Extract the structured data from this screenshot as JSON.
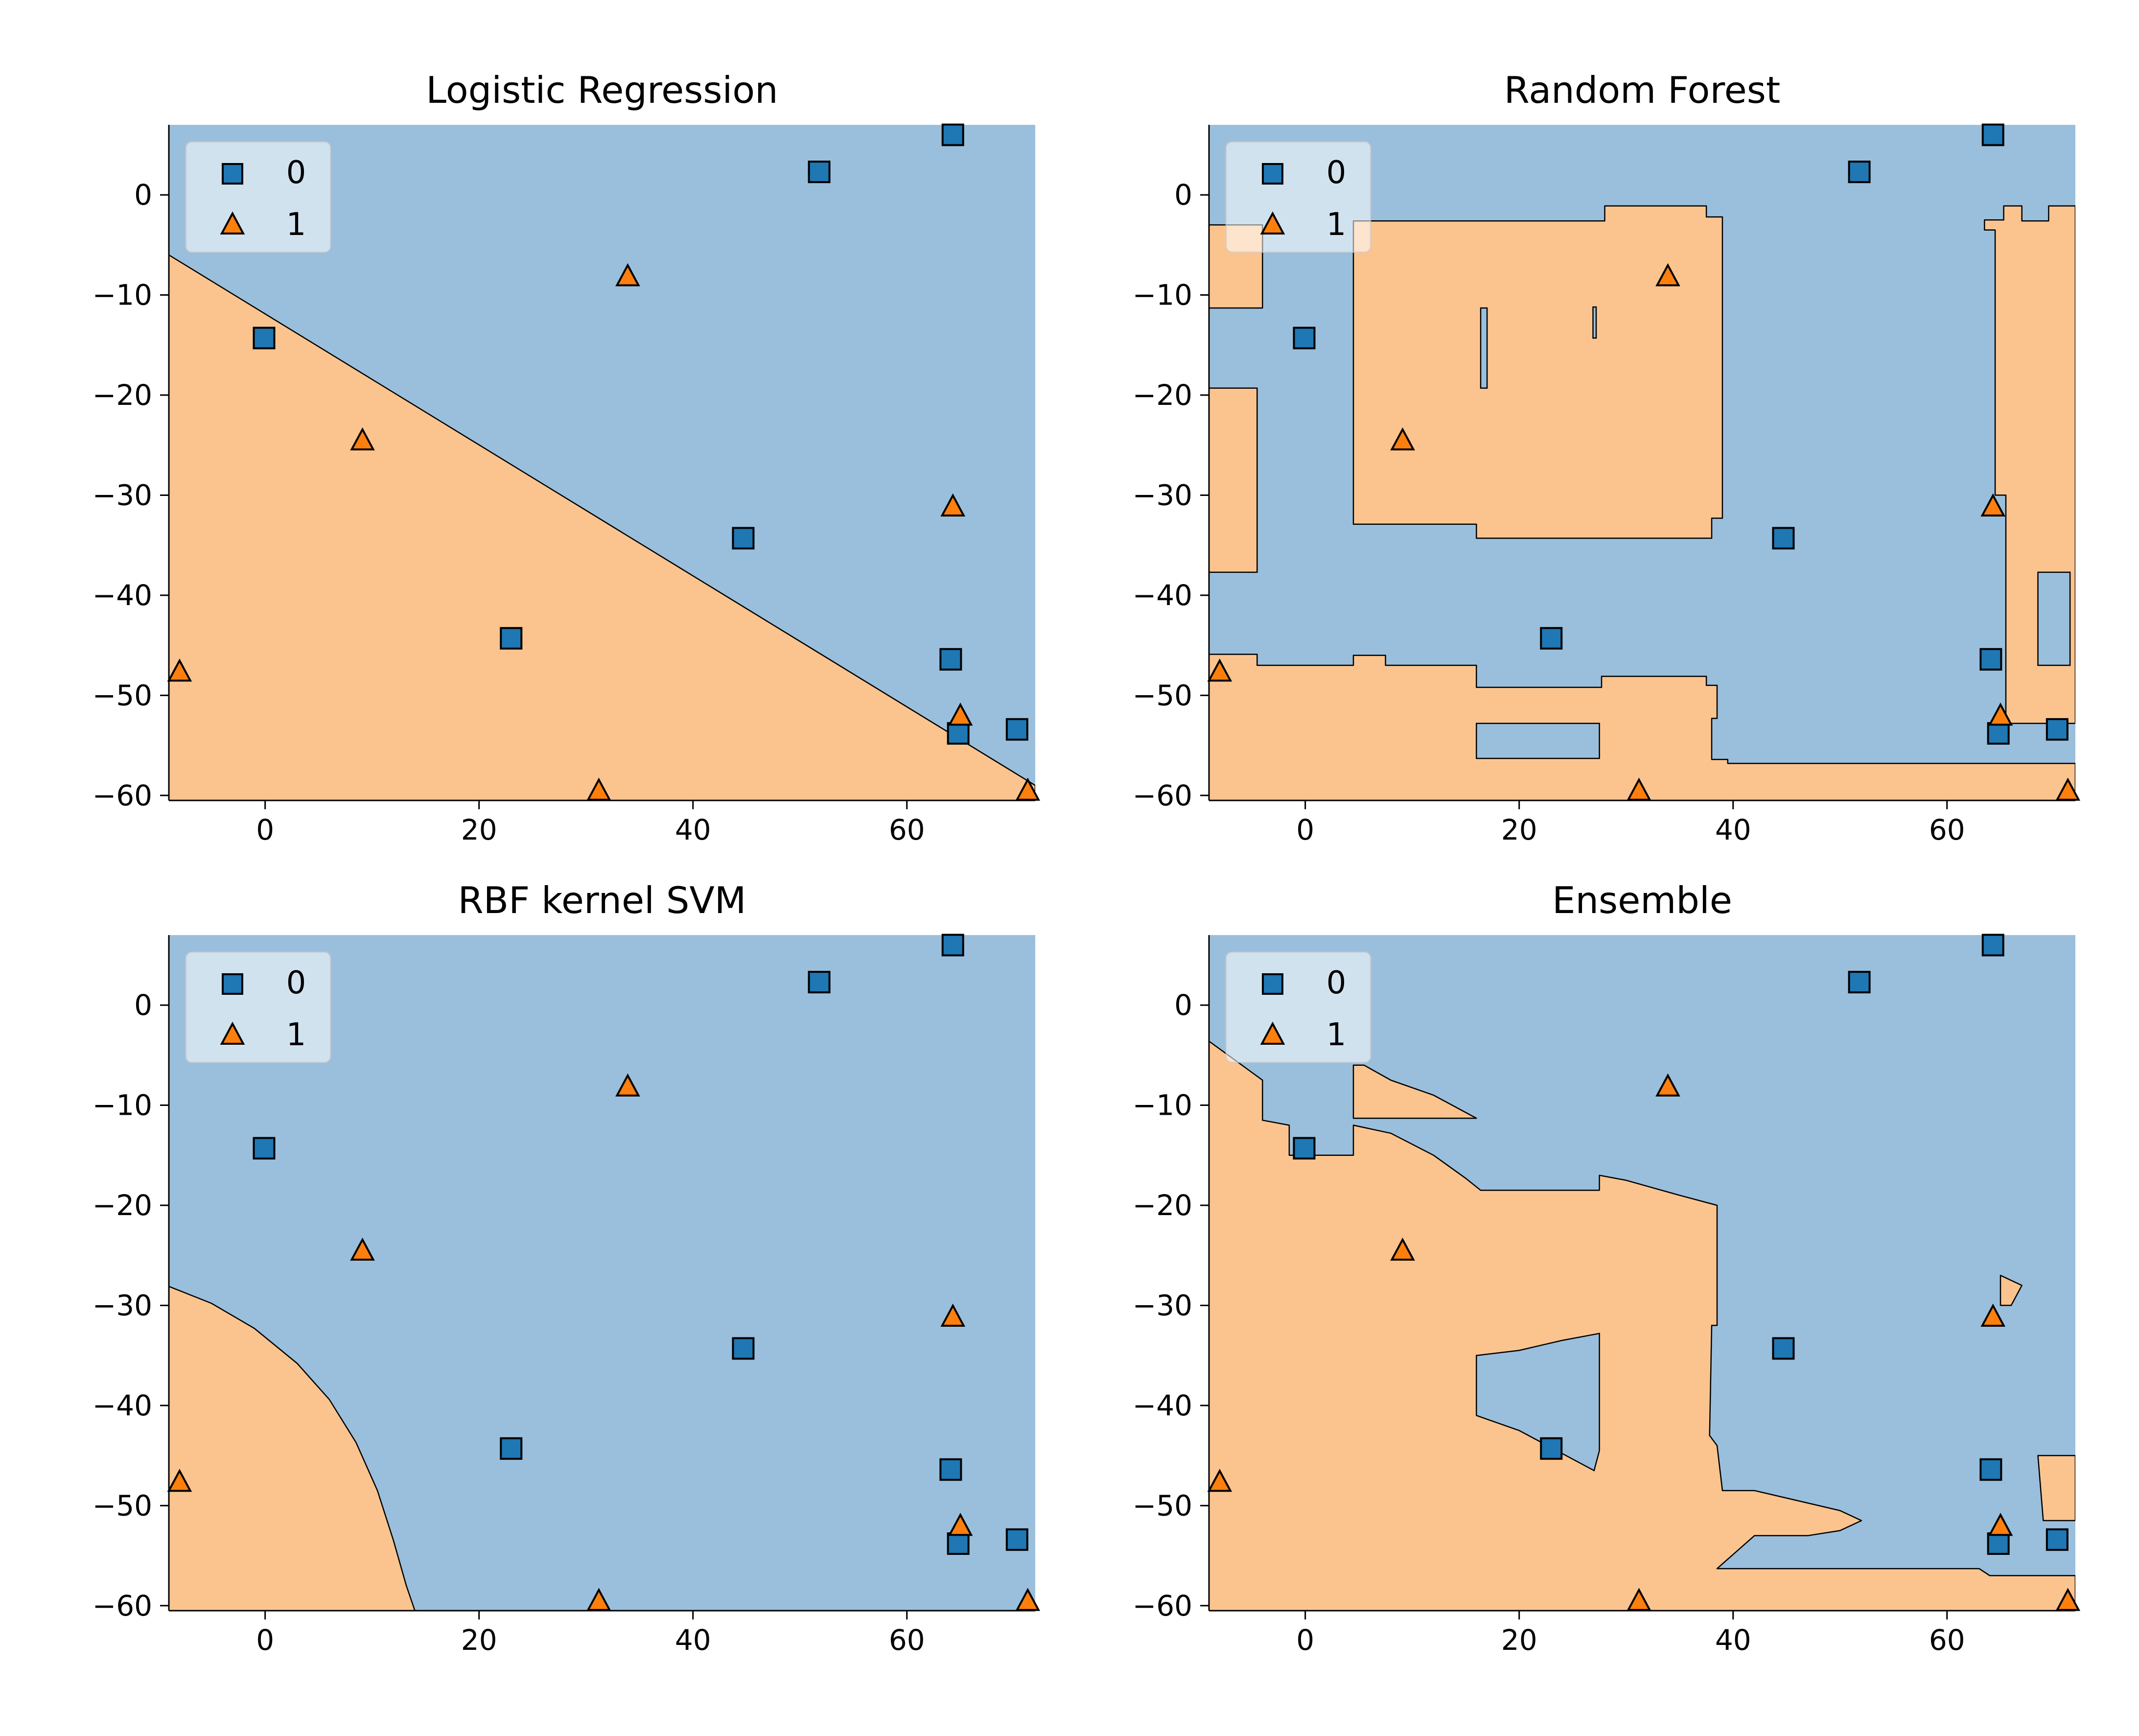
{
  "colors": {
    "class0_region": "#9ABFDC",
    "class1_region": "#FBC48F",
    "class0_marker": "#1F77B4",
    "class1_marker": "#FF7F0E",
    "boundary": "#000000"
  },
  "chart_data": [
    {
      "type": "scatter",
      "title": "Logistic Regression",
      "xlim": [
        -9,
        72
      ],
      "ylim": [
        -60.5,
        7
      ],
      "xticks": [
        "0",
        "20",
        "40",
        "60"
      ],
      "yticks": [
        "0",
        "−10",
        "−20",
        "−30",
        "−40",
        "−50",
        "−60"
      ],
      "legend": {
        "placement": "top-left",
        "entries": [
          "0",
          "1"
        ]
      },
      "decision_regions": {
        "default_class": "0",
        "class1_polygons": [
          [
            [
              -9,
              -6
            ],
            [
              72,
              -59
            ],
            [
              72,
              -60.5
            ],
            [
              -9,
              -60.5
            ]
          ]
        ]
      },
      "series": [
        {
          "name": "0",
          "marker": "square",
          "points": [
            [
              64.3,
              6
            ],
            [
              51.8,
              2.3
            ],
            [
              -0.1,
              -14.3
            ],
            [
              44.7,
              -34.3
            ],
            [
              23,
              -44.3
            ],
            [
              64.1,
              -46.4
            ],
            [
              70.3,
              -53.4
            ],
            [
              64.8,
              -53.8
            ]
          ]
        },
        {
          "name": "1",
          "marker": "triangle",
          "points": [
            [
              33.9,
              -8.2
            ],
            [
              9.1,
              -24.6
            ],
            [
              64.3,
              -31.2
            ],
            [
              -8,
              -47.7
            ],
            [
              65,
              -52.1
            ],
            [
              31.2,
              -59.6
            ],
            [
              71.3,
              -59.6
            ]
          ]
        }
      ]
    },
    {
      "type": "scatter",
      "title": "Random Forest",
      "xlim": [
        -9,
        72
      ],
      "ylim": [
        -60.5,
        7
      ],
      "xticks": [
        "0",
        "20",
        "40",
        "60"
      ],
      "yticks": [
        "0",
        "−10",
        "−20",
        "−30",
        "−40",
        "−50",
        "−60"
      ],
      "legend": {
        "placement": "top-left",
        "entries": [
          "0",
          "1"
        ]
      },
      "decision_regions": {
        "default_class": "0",
        "class1_polygons": [
          [
            [
              -9,
              -3
            ],
            [
              -4,
              -3
            ],
            [
              -4,
              -11.3
            ],
            [
              -9,
              -11.3
            ]
          ],
          [
            [
              -9,
              -19.3
            ],
            [
              -4.5,
              -19.3
            ],
            [
              -4.5,
              -37.7
            ],
            [
              -9,
              -37.7
            ]
          ],
          [
            [
              4.5,
              -2.6
            ],
            [
              28,
              -2.6
            ],
            [
              28,
              -1.1
            ],
            [
              37.5,
              -1.1
            ],
            [
              37.5,
              -2.2
            ],
            [
              39,
              -2.2
            ],
            [
              39,
              -32.3
            ],
            [
              38,
              -32.3
            ],
            [
              38,
              -34.3
            ],
            [
              16,
              -34.3
            ],
            [
              16,
              -32.9
            ],
            [
              4.5,
              -32.9
            ]
          ],
          [
            [
              63.5,
              -2.5
            ],
            [
              65.3,
              -2.5
            ],
            [
              65.3,
              -1.1
            ],
            [
              67,
              -1.1
            ],
            [
              67,
              -2.6
            ],
            [
              69.5,
              -2.6
            ],
            [
              69.5,
              -1.1
            ],
            [
              72,
              -1.1
            ],
            [
              72,
              -52.8
            ],
            [
              65.5,
              -52.8
            ],
            [
              65.5,
              -30
            ],
            [
              64.5,
              -30
            ],
            [
              64.5,
              -3.5
            ],
            [
              63.5,
              -3.5
            ]
          ],
          [
            [
              -9,
              -45.9
            ],
            [
              -4.5,
              -45.9
            ],
            [
              -4.5,
              -47
            ],
            [
              4.5,
              -47
            ],
            [
              4.5,
              -46
            ],
            [
              7.5,
              -46
            ],
            [
              7.5,
              -47
            ],
            [
              16,
              -47
            ],
            [
              16,
              -49.2
            ],
            [
              27.7,
              -49.2
            ],
            [
              27.7,
              -48.1
            ],
            [
              37.5,
              -48.1
            ],
            [
              37.5,
              -49
            ],
            [
              38.5,
              -49
            ],
            [
              38.5,
              -52.3
            ],
            [
              38,
              -52.3
            ],
            [
              38,
              -56.4
            ],
            [
              39.5,
              -56.4
            ],
            [
              39.5,
              -56.8
            ],
            [
              72,
              -56.8
            ],
            [
              72,
              -60.5
            ],
            [
              -9,
              -60.5
            ]
          ]
        ],
        "class0_polygons": [
          [
            [
              16,
              -52.8
            ],
            [
              27.5,
              -52.8
            ],
            [
              27.5,
              -56.3
            ],
            [
              16,
              -56.3
            ]
          ],
          [
            [
              16.4,
              -11.3
            ],
            [
              17,
              -11.3
            ],
            [
              17,
              -19.3
            ],
            [
              16.4,
              -19.3
            ]
          ],
          [
            [
              26.9,
              -11.2
            ],
            [
              27.2,
              -11.2
            ],
            [
              27.2,
              -14.3
            ],
            [
              26.9,
              -14.3
            ]
          ],
          [
            [
              68.5,
              -37.7
            ],
            [
              71.5,
              -37.7
            ],
            [
              71.5,
              -47
            ],
            [
              68.5,
              -47
            ]
          ]
        ]
      },
      "series": [
        {
          "name": "0",
          "marker": "square",
          "points": [
            [
              64.3,
              6
            ],
            [
              51.8,
              2.3
            ],
            [
              -0.1,
              -14.3
            ],
            [
              44.7,
              -34.3
            ],
            [
              23,
              -44.3
            ],
            [
              64.1,
              -46.4
            ],
            [
              70.3,
              -53.4
            ],
            [
              64.8,
              -53.8
            ]
          ]
        },
        {
          "name": "1",
          "marker": "triangle",
          "points": [
            [
              33.9,
              -8.2
            ],
            [
              9.1,
              -24.6
            ],
            [
              64.3,
              -31.2
            ],
            [
              -8,
              -47.7
            ],
            [
              65,
              -52.1
            ],
            [
              31.2,
              -59.6
            ],
            [
              71.3,
              -59.6
            ]
          ]
        }
      ]
    },
    {
      "type": "scatter",
      "title": "RBF kernel SVM",
      "xlim": [
        -9,
        72
      ],
      "ylim": [
        -60.5,
        7
      ],
      "xticks": [
        "0",
        "20",
        "40",
        "60"
      ],
      "yticks": [
        "0",
        "−10",
        "−20",
        "−30",
        "−40",
        "−50",
        "−60"
      ],
      "legend": {
        "placement": "top-left",
        "entries": [
          "0",
          "1"
        ]
      },
      "decision_regions": {
        "default_class": "0",
        "class1_polygons": [
          [
            [
              -9,
              -28.1
            ],
            [
              -5,
              -29.8
            ],
            [
              -1,
              -32.3
            ],
            [
              3,
              -35.8
            ],
            [
              6,
              -39.4
            ],
            [
              8.5,
              -43.7
            ],
            [
              10.5,
              -48.5
            ],
            [
              12,
              -53.5
            ],
            [
              13.2,
              -58
            ],
            [
              14,
              -60.5
            ],
            [
              -9,
              -60.5
            ]
          ]
        ]
      },
      "series": [
        {
          "name": "0",
          "marker": "square",
          "points": [
            [
              64.3,
              6
            ],
            [
              51.8,
              2.3
            ],
            [
              -0.1,
              -14.3
            ],
            [
              44.7,
              -34.3
            ],
            [
              23,
              -44.3
            ],
            [
              64.1,
              -46.4
            ],
            [
              70.3,
              -53.4
            ],
            [
              64.8,
              -53.8
            ]
          ]
        },
        {
          "name": "1",
          "marker": "triangle",
          "points": [
            [
              33.9,
              -8.2
            ],
            [
              9.1,
              -24.6
            ],
            [
              64.3,
              -31.2
            ],
            [
              -8,
              -47.7
            ],
            [
              65,
              -52.1
            ],
            [
              31.2,
              -59.6
            ],
            [
              71.3,
              -59.6
            ]
          ]
        }
      ]
    },
    {
      "type": "scatter",
      "title": "Ensemble",
      "xlim": [
        -9,
        72
      ],
      "ylim": [
        -60.5,
        7
      ],
      "xticks": [
        "0",
        "20",
        "40",
        "60"
      ],
      "yticks": [
        "0",
        "−10",
        "−20",
        "−30",
        "−40",
        "−50",
        "−60"
      ],
      "legend": {
        "placement": "top-left",
        "entries": [
          "0",
          "1"
        ]
      },
      "decision_regions": {
        "default_class": "0",
        "class1_polygons": [
          [
            [
              -9,
              -3.6
            ],
            [
              -4,
              -7.5
            ],
            [
              -4,
              -11.5
            ],
            [
              -1.5,
              -12
            ],
            [
              -1.5,
              -15
            ],
            [
              4.5,
              -15
            ],
            [
              4.5,
              -12
            ],
            [
              8,
              -12.8
            ],
            [
              12,
              -15
            ],
            [
              15,
              -17.3
            ],
            [
              16.4,
              -18.5
            ],
            [
              27.5,
              -18.5
            ],
            [
              27.5,
              -17
            ],
            [
              30,
              -17.5
            ],
            [
              35,
              -19
            ],
            [
              38.5,
              -20
            ],
            [
              38.5,
              -32
            ],
            [
              38,
              -32
            ],
            [
              37.8,
              -43
            ],
            [
              38.5,
              -44
            ],
            [
              39,
              -48.5
            ],
            [
              42,
              -48.5
            ],
            [
              46,
              -49.5
            ],
            [
              50,
              -50.5
            ],
            [
              52,
              -51.5
            ],
            [
              50,
              -52.5
            ],
            [
              47,
              -53
            ],
            [
              42,
              -53
            ],
            [
              38.5,
              -56.3
            ],
            [
              63,
              -56.3
            ],
            [
              64,
              -57
            ],
            [
              72,
              -57
            ],
            [
              72,
              -60.5
            ],
            [
              -9,
              -60.5
            ]
          ],
          [
            [
              4.5,
              -6
            ],
            [
              5.5,
              -6
            ],
            [
              8,
              -7.5
            ],
            [
              12,
              -9
            ],
            [
              16,
              -11.3
            ],
            [
              4.5,
              -11.3
            ]
          ],
          [
            [
              68.5,
              -45
            ],
            [
              72,
              -45
            ],
            [
              72,
              -51.5
            ],
            [
              69,
              -51.5
            ]
          ],
          [
            [
              65,
              -27
            ],
            [
              67,
              -28
            ],
            [
              66,
              -30
            ],
            [
              65,
              -30
            ]
          ]
        ],
        "class0_polygons": [
          [
            [
              16,
              -35
            ],
            [
              20,
              -34.5
            ],
            [
              24,
              -33.5
            ],
            [
              27.5,
              -32.8
            ],
            [
              27.5,
              -44.5
            ],
            [
              27,
              -46.5
            ],
            [
              20,
              -42.5
            ],
            [
              16,
              -41
            ]
          ]
        ]
      },
      "series": [
        {
          "name": "0",
          "marker": "square",
          "points": [
            [
              64.3,
              6
            ],
            [
              51.8,
              2.3
            ],
            [
              -0.1,
              -14.3
            ],
            [
              44.7,
              -34.3
            ],
            [
              23,
              -44.3
            ],
            [
              64.1,
              -46.4
            ],
            [
              70.3,
              -53.4
            ],
            [
              64.8,
              -53.8
            ]
          ]
        },
        {
          "name": "1",
          "marker": "triangle",
          "points": [
            [
              33.9,
              -8.2
            ],
            [
              9.1,
              -24.6
            ],
            [
              64.3,
              -31.2
            ],
            [
              -8,
              -47.7
            ],
            [
              65,
              -52.1
            ],
            [
              31.2,
              -59.6
            ],
            [
              71.3,
              -59.6
            ]
          ]
        }
      ]
    }
  ]
}
